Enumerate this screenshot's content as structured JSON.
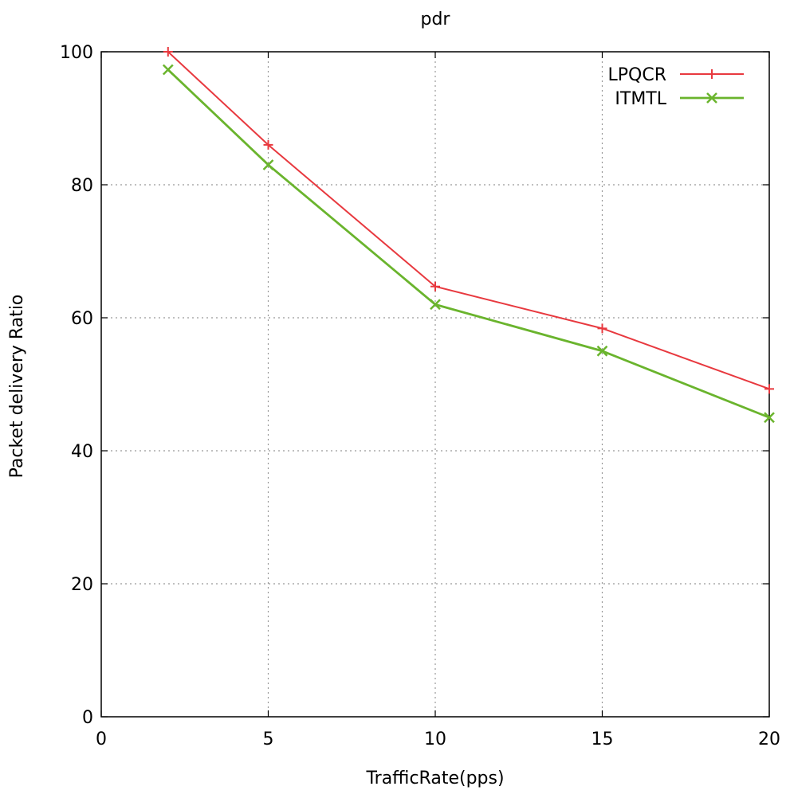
{
  "chart_data": {
    "type": "line",
    "title": "pdr",
    "xlabel": "TrafficRate(pps)",
    "ylabel": "Packet delivery Ratio",
    "xlim": [
      0,
      20
    ],
    "ylim": [
      0,
      100
    ],
    "xticks": [
      0,
      5,
      10,
      15,
      20
    ],
    "yticks": [
      0,
      20,
      40,
      60,
      80,
      100
    ],
    "grid": true,
    "legend_position": "top-right",
    "series": [
      {
        "name": "LPQCR",
        "color": "#e8393f",
        "marker": "plus",
        "x": [
          2,
          5,
          10,
          15,
          20
        ],
        "y": [
          100,
          86,
          64.7,
          58.4,
          49.3
        ]
      },
      {
        "name": "ITMTL",
        "color": "#6ab42d",
        "marker": "cross",
        "x": [
          2,
          5,
          10,
          15,
          20
        ],
        "y": [
          97.3,
          83,
          62,
          55,
          45
        ]
      }
    ]
  }
}
